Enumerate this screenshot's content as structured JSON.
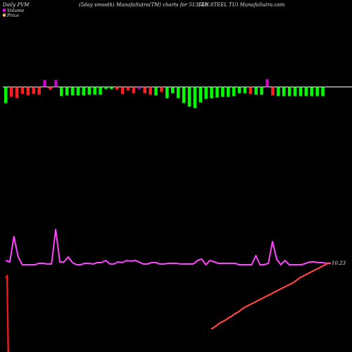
{
  "header": {
    "left": "Daily PVM",
    "mid": "(5day smooth) MunafaSutra(TM) charts for 513540",
    "right": "(T.N.STEEL TU) MunafaSutra.com"
  },
  "legend": {
    "volume_label": "Volume",
    "price_label": "Price",
    "volume_color": "#ff00ff",
    "price_color": "#ffbb77"
  },
  "colors": {
    "up_bar": "#00ff00",
    "down_bar": "#ff2020",
    "special_bar": "#cc00cc",
    "volume_line": "#ff44ff",
    "price_line": "#ff1a1a",
    "price_line_highlight": "#ff9999",
    "baseline": "#ffffff"
  },
  "chart_data": {
    "type": "bar",
    "title": "",
    "price_label_text": "10.23",
    "volume_bars": [
      {
        "v": -2.3,
        "c": "g"
      },
      {
        "v": -1.4,
        "c": "r"
      },
      {
        "v": -1.6,
        "c": "r"
      },
      {
        "v": -1.0,
        "c": "r"
      },
      {
        "v": -1.2,
        "c": "r"
      },
      {
        "v": -1.0,
        "c": "r"
      },
      {
        "v": -1.1,
        "c": "r"
      },
      {
        "v": 1.0,
        "c": "m"
      },
      {
        "v": -0.4,
        "c": "r"
      },
      {
        "v": 1.0,
        "c": "m"
      },
      {
        "v": -1.3,
        "c": "g"
      },
      {
        "v": -1.2,
        "c": "g"
      },
      {
        "v": -1.2,
        "c": "g"
      },
      {
        "v": -1.2,
        "c": "g"
      },
      {
        "v": -1.2,
        "c": "g"
      },
      {
        "v": -1.1,
        "c": "g"
      },
      {
        "v": -1.1,
        "c": "g"
      },
      {
        "v": -1.1,
        "c": "g"
      },
      {
        "v": -0.3,
        "c": "g"
      },
      {
        "v": -0.3,
        "c": "g"
      },
      {
        "v": -0.4,
        "c": "r"
      },
      {
        "v": -1.0,
        "c": "r"
      },
      {
        "v": -0.5,
        "c": "r"
      },
      {
        "v": -0.9,
        "c": "r"
      },
      {
        "v": -0.3,
        "c": "m"
      },
      {
        "v": -0.9,
        "c": "r"
      },
      {
        "v": -1.1,
        "c": "r"
      },
      {
        "v": -1.2,
        "c": "g"
      },
      {
        "v": -0.7,
        "c": "r"
      },
      {
        "v": -1.6,
        "c": "g"
      },
      {
        "v": -0.9,
        "c": "g"
      },
      {
        "v": -1.6,
        "c": "g"
      },
      {
        "v": -2.3,
        "c": "g"
      },
      {
        "v": -2.8,
        "c": "g"
      },
      {
        "v": -3.0,
        "c": "g"
      },
      {
        "v": -2.2,
        "c": "g"
      },
      {
        "v": -1.7,
        "c": "g"
      },
      {
        "v": -1.6,
        "c": "g"
      },
      {
        "v": -1.5,
        "c": "g"
      },
      {
        "v": -1.4,
        "c": "g"
      },
      {
        "v": -1.4,
        "c": "g"
      },
      {
        "v": -1.3,
        "c": "g"
      },
      {
        "v": -0.9,
        "c": "g"
      },
      {
        "v": -0.9,
        "c": "g"
      },
      {
        "v": -1.0,
        "c": "r"
      },
      {
        "v": -1.1,
        "c": "g"
      },
      {
        "v": -1.1,
        "c": "g"
      },
      {
        "v": 1.1,
        "c": "m"
      },
      {
        "v": -1.2,
        "c": "r"
      },
      {
        "v": -1.3,
        "c": "g"
      },
      {
        "v": -1.3,
        "c": "g"
      },
      {
        "v": -1.3,
        "c": "g"
      },
      {
        "v": -1.3,
        "c": "g"
      },
      {
        "v": -1.3,
        "c": "g"
      },
      {
        "v": -1.3,
        "c": "g"
      },
      {
        "v": -1.3,
        "c": "g"
      },
      {
        "v": -1.3,
        "c": "g"
      },
      {
        "v": -1.3,
        "c": "g"
      }
    ],
    "volume_line": [
      370,
      372,
      336,
      365,
      376,
      376,
      376,
      376,
      374,
      374,
      375,
      375,
      326,
      372,
      372,
      365,
      373,
      376,
      376,
      374,
      374,
      375,
      373,
      373,
      370,
      375,
      375,
      372,
      373,
      370,
      371,
      370,
      372,
      375,
      375,
      373,
      373,
      375,
      375,
      374,
      374,
      374,
      375,
      375,
      375,
      375,
      370,
      368,
      376,
      370,
      372,
      374,
      374,
      374,
      374,
      374,
      376,
      376,
      376,
      376,
      363,
      376,
      376,
      374,
      343,
      368,
      376,
      370,
      376,
      376,
      376,
      376,
      374,
      372,
      372,
      373,
      373,
      374,
      374
    ],
    "price_line": [
      -10,
      -12,
      -11,
      -11,
      -11,
      -12,
      -12,
      -12,
      -11,
      -11,
      -12,
      -12,
      -12,
      -12,
      -12,
      -12,
      -12,
      -12,
      -12,
      -12,
      -12,
      -11,
      -11,
      -12,
      -12,
      -12,
      -12,
      -11,
      -11,
      -11,
      -10,
      -10,
      -10,
      -9.5,
      -9,
      -8.7,
      -8.5,
      -8.2,
      -8.0,
      -7.8,
      -7.5,
      -7.2,
      -7.0,
      -6.8,
      -6.5,
      -6.3,
      -6.0,
      -5.8,
      -5.5,
      -5.2,
      -5.0,
      -4.8,
      -4.6,
      -4.4,
      -4.2,
      -4.0,
      -3.8,
      -3.6,
      -3.4,
      -3.2,
      -3.0,
      -2.8,
      -2.6,
      -2.4,
      -2.2,
      -2.0,
      -1.8,
      -1.5,
      -1.2,
      -1.0,
      -0.8,
      -0.6,
      -0.4,
      -0.2,
      0.0,
      0.2,
      0.4,
      0.6,
      0.8
    ]
  }
}
